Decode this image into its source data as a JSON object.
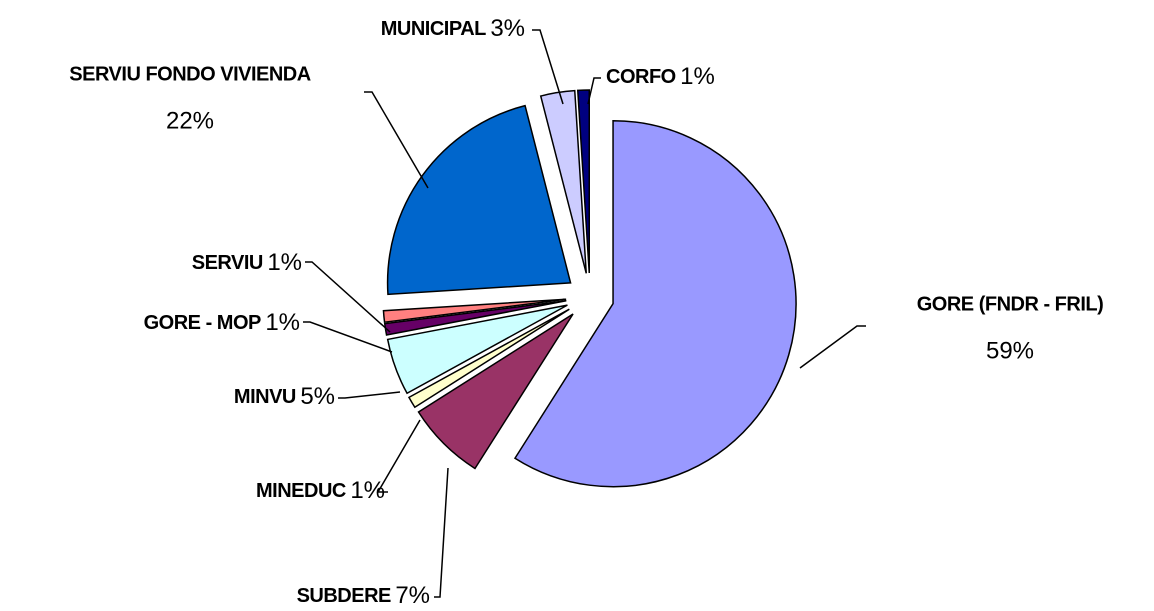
{
  "chart_data": {
    "type": "pie",
    "categories": [
      "GORE (FNDR - FRIL)",
      "SUBDERE",
      "MINEDUC",
      "MINVU",
      "GORE - MOP",
      "SERVIU",
      "SERVIU FONDO VIVIENDA",
      "MUNICIPAL",
      "CORFO"
    ],
    "values": [
      59,
      7,
      1,
      5,
      1,
      1,
      22,
      3,
      1
    ],
    "value_labels": [
      "59%",
      "7%",
      "1%",
      "5%",
      "1%",
      "1%",
      "22%",
      "3%",
      "1%"
    ],
    "colors": [
      "#9999ff",
      "#993366",
      "#ffffcc",
      "#ccffff",
      "#660066",
      "#ff8080",
      "#0066cc",
      "#ccccff",
      "#000080"
    ]
  }
}
